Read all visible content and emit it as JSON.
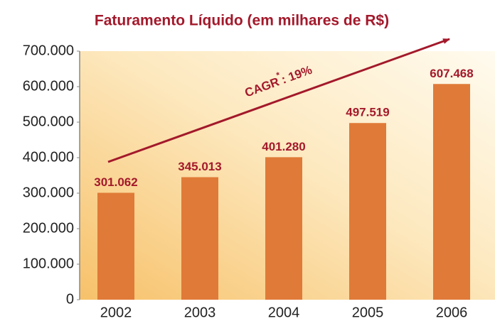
{
  "chart_data": {
    "type": "bar",
    "title": "Faturamento Líquido (em milhares de R$)",
    "categories": [
      "2002",
      "2003",
      "2004",
      "2005",
      "2006"
    ],
    "values": [
      301062,
      345013,
      401280,
      497519,
      607468
    ],
    "value_labels": [
      "301.062",
      "345.013",
      "401.280",
      "497.519",
      "607.468"
    ],
    "color": "#e07a38",
    "ylim": [
      0,
      700000
    ],
    "yticks": [
      0,
      {
        "value": 100000,
        "label": "100.000"
      },
      {
        "value": 200000,
        "label": "200.000"
      },
      {
        "value": 300000,
        "label": "300.000"
      },
      {
        "value": 400000,
        "label": "400.000"
      },
      {
        "value": 500000,
        "label": "500.000"
      },
      {
        "value": 600000,
        "label": "600.000"
      },
      {
        "value": 700000,
        "label": "700.000"
      }
    ],
    "annotation": [
      "CAGR",
      "*",
      ": 19%"
    ]
  }
}
